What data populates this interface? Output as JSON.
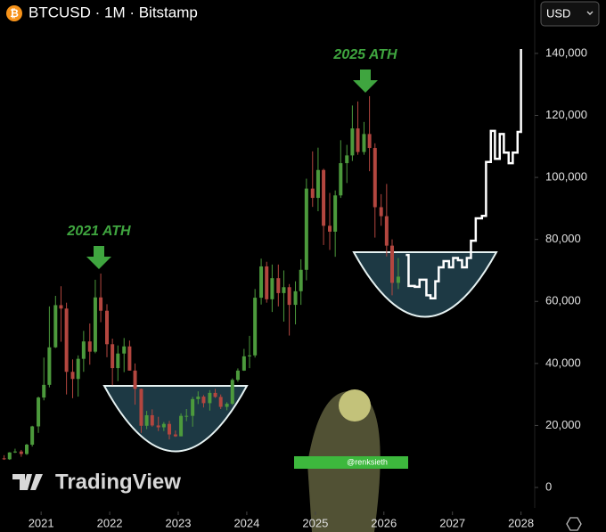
{
  "chart_data": {
    "type": "candlestick",
    "title": "BTCUSD · 1M · Bitstamp",
    "currency": "USD",
    "watermark": "TradingView",
    "credit": "@renksieth",
    "annotations": [
      "2021 ATH",
      "2025 ATH"
    ],
    "up_color": "#4c9a3c",
    "down_color": "#b3463f",
    "projection_color": "#ffffff",
    "xlim": [
      2020.4,
      2028.2
    ],
    "xticks": [
      2021,
      2022,
      2023,
      2024,
      2025,
      2026,
      2027,
      2028
    ],
    "ylim": [
      -6600,
      148600
    ],
    "yticks": [
      0,
      {
        "value": 20000,
        "label": "20,000"
      },
      {
        "value": 40000,
        "label": "40,000"
      },
      {
        "value": 60000,
        "label": "60,000"
      },
      {
        "value": 80000,
        "label": "80,000"
      },
      {
        "value": 100000,
        "label": "100,000"
      },
      {
        "value": 120000,
        "label": "120,000"
      },
      {
        "value": 140000,
        "label": "140,000"
      }
    ],
    "x": [
      2020.46,
      2020.54,
      2020.62,
      2020.71,
      2020.79,
      2020.87,
      2020.96,
      2021.04,
      2021.12,
      2021.21,
      2021.29,
      2021.37,
      2021.46,
      2021.54,
      2021.62,
      2021.71,
      2021.79,
      2021.87,
      2021.96,
      2022.04,
      2022.12,
      2022.21,
      2022.29,
      2022.37,
      2022.46,
      2022.54,
      2022.62,
      2022.71,
      2022.79,
      2022.87,
      2022.96,
      2023.04,
      2023.12,
      2023.21,
      2023.29,
      2023.37,
      2023.46,
      2023.54,
      2023.62,
      2023.71,
      2023.79,
      2023.87,
      2023.96,
      2024.04,
      2024.12,
      2024.21,
      2024.29,
      2024.37,
      2024.46,
      2024.54,
      2024.62,
      2024.71,
      2024.79,
      2024.87,
      2024.96,
      2025.04,
      2025.12,
      2025.21,
      2025.29,
      2025.37,
      2025.46,
      2025.54,
      2025.62,
      2025.71,
      2025.79,
      2025.87,
      2025.96,
      2026.04,
      2026.12,
      2026.21
    ],
    "open": [
      9400,
      9100,
      11300,
      11600,
      10800,
      13800,
      19700,
      29000,
      33100,
      45200,
      58800,
      57700,
      37300,
      35000,
      41500,
      47100,
      43800,
      61300,
      57000,
      46200,
      38500,
      43200,
      45500,
      37700,
      31800,
      19900,
      23300,
      20000,
      19400,
      20500,
      17100,
      16500,
      23100,
      23100,
      28500,
      29300,
      27200,
      30500,
      29200,
      26000,
      27000,
      34700,
      37700,
      42300,
      42600,
      61200,
      71300,
      60700,
      67500,
      62700,
      64600,
      58900,
      63300,
      70200,
      96400,
      93400,
      102400,
      84400,
      82500,
      94200,
      104600,
      107100,
      115800,
      108200,
      114000,
      109500,
      90400,
      87500,
      78000,
      66000
    ],
    "high": [
      10400,
      11400,
      12500,
      12100,
      14100,
      19900,
      29300,
      41900,
      58400,
      61800,
      64900,
      59600,
      41300,
      42600,
      50500,
      52900,
      67000,
      69000,
      59100,
      48000,
      45800,
      48200,
      47400,
      40000,
      31900,
      24700,
      25200,
      22800,
      21100,
      21500,
      18400,
      23900,
      25300,
      29200,
      31000,
      29800,
      31400,
      31800,
      30000,
      27500,
      35200,
      38400,
      44700,
      48900,
      64000,
      73800,
      72800,
      71900,
      71900,
      70000,
      65600,
      66500,
      73600,
      99600,
      108400,
      109600,
      102800,
      95000,
      95800,
      112000,
      110500,
      123200,
      124500,
      117900,
      126200,
      111000,
      94600,
      97900,
      80000,
      74000
    ],
    "low": [
      8900,
      8900,
      11100,
      9900,
      10500,
      13200,
      17600,
      28100,
      32300,
      45000,
      47000,
      30000,
      28800,
      29300,
      37300,
      39600,
      43300,
      53300,
      42000,
      33000,
      34300,
      37200,
      37700,
      26700,
      17600,
      18800,
      19600,
      18200,
      18200,
      15500,
      16300,
      16500,
      21400,
      19600,
      26900,
      25800,
      24800,
      28900,
      25300,
      24900,
      26600,
      34100,
      37600,
      38500,
      41900,
      59000,
      59600,
      56600,
      58400,
      53500,
      49000,
      52600,
      58900,
      66800,
      90500,
      89100,
      78200,
      76600,
      74400,
      93400,
      98200,
      105300,
      107300,
      107300,
      102000,
      80600,
      84400,
      74500,
      62000,
      64000
    ],
    "close": [
      9100,
      11300,
      11600,
      10800,
      13800,
      19700,
      29000,
      33100,
      45200,
      58800,
      57700,
      37300,
      35000,
      41500,
      47100,
      43800,
      61300,
      57000,
      46200,
      38500,
      43200,
      45500,
      37700,
      31800,
      19900,
      23300,
      20000,
      19400,
      20500,
      17100,
      16500,
      23100,
      23100,
      28500,
      29300,
      27200,
      30500,
      29200,
      26000,
      27000,
      34700,
      37700,
      42300,
      42600,
      61200,
      71300,
      60700,
      67500,
      62700,
      64600,
      58900,
      63300,
      70200,
      96400,
      93400,
      102400,
      84400,
      82500,
      94200,
      104600,
      107100,
      115800,
      108200,
      114000,
      109500,
      90400,
      87500,
      78000,
      66000,
      68000
    ],
    "projection": {
      "x": [
        2026.32,
        2026.36,
        2026.45,
        2026.52,
        2026.62,
        2026.68,
        2026.75,
        2026.8,
        2026.87,
        2026.95,
        2027.01,
        2027.08,
        2027.14,
        2027.21,
        2027.27,
        2027.34,
        2027.43,
        2027.49,
        2027.56,
        2027.62,
        2027.69,
        2027.75,
        2027.82,
        2027.88,
        2027.95,
        2028.0
      ],
      "values": [
        75000,
        65000,
        64700,
        67000,
        62000,
        61000,
        66500,
        71000,
        73000,
        71000,
        74000,
        73300,
        71000,
        74000,
        79600,
        86800,
        87600,
        105000,
        115000,
        106000,
        114000,
        108000,
        104600,
        108000,
        114700,
        141400
      ]
    }
  }
}
